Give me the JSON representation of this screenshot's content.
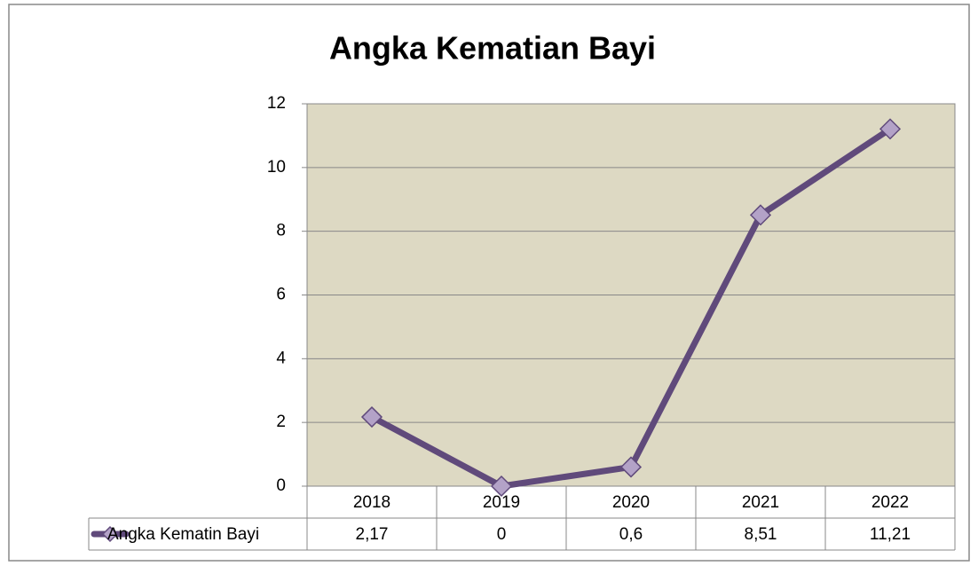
{
  "chart_data": {
    "type": "line",
    "title": "Angka Kematian Bayi",
    "categories": [
      "2018",
      "2019",
      "2020",
      "2021",
      "2022"
    ],
    "series": [
      {
        "name": "Angka Kematin Bayi",
        "color": "#604a7b",
        "marker_color": "#b3a2c7",
        "values": [
          2.17,
          0,
          0.6,
          8.51,
          11.21
        ],
        "value_labels": [
          "2,17",
          "0",
          "0,6",
          "8,51",
          "11,21"
        ]
      }
    ],
    "ylim": [
      0,
      12
    ],
    "yticks": [
      0,
      2,
      4,
      6,
      8,
      10,
      12
    ],
    "grid": true,
    "plot_background": "#ddd9c3",
    "data_table": true
  }
}
